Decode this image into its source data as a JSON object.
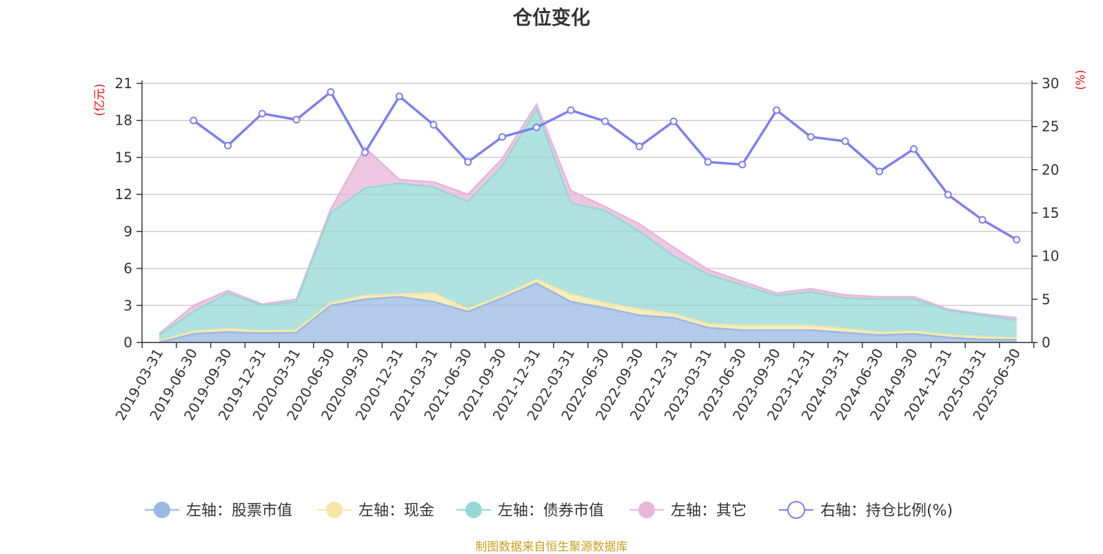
{
  "chart_data": {
    "type": "area",
    "title": "仓位变化",
    "left_axis": {
      "unit": "(亿元)",
      "range": [
        0,
        21
      ],
      "ticks": [
        0,
        3,
        6,
        9,
        12,
        15,
        18,
        21
      ]
    },
    "right_axis": {
      "unit": "(%)",
      "range": [
        0,
        30
      ],
      "ticks": [
        0,
        5,
        10,
        15,
        20,
        25,
        30
      ]
    },
    "categories": [
      "2019-03-31",
      "2019-06-30",
      "2019-09-30",
      "2019-12-31",
      "2020-03-31",
      "2020-06-30",
      "2020-09-30",
      "2020-12-31",
      "2021-03-31",
      "2021-06-30",
      "2021-09-30",
      "2021-12-31",
      "2022-03-31",
      "2022-06-30",
      "2022-09-30",
      "2022-12-31",
      "2023-03-31",
      "2023-06-30",
      "2023-09-30",
      "2023-12-31",
      "2024-03-31",
      "2024-06-30",
      "2024-09-30",
      "2024-12-31",
      "2025-03-31",
      "2025-06-30"
    ],
    "series": [
      {
        "name": "左轴：股票市值",
        "axis": "left",
        "type": "stacked-area",
        "color": "#9ab8e0",
        "values": [
          0.0,
          0.7,
          0.85,
          0.75,
          0.8,
          3.0,
          3.5,
          3.7,
          3.3,
          2.5,
          3.6,
          4.8,
          3.3,
          2.8,
          2.2,
          2.0,
          1.2,
          1.0,
          1.0,
          1.0,
          0.8,
          0.6,
          0.7,
          0.4,
          0.25,
          0.2
        ]
      },
      {
        "name": "左轴：现金",
        "axis": "left",
        "type": "stacked-area",
        "color": "#f6e7a6",
        "values": [
          0.1,
          0.2,
          0.25,
          0.15,
          0.2,
          0.2,
          0.3,
          0.2,
          0.7,
          0.2,
          0.2,
          0.3,
          0.6,
          0.4,
          0.5,
          0.3,
          0.3,
          0.35,
          0.35,
          0.35,
          0.3,
          0.2,
          0.2,
          0.2,
          0.2,
          0.15
        ]
      },
      {
        "name": "左轴：债券市值",
        "axis": "left",
        "type": "stacked-area",
        "color": "#96d8d6",
        "values": [
          0.5,
          1.6,
          2.9,
          2.1,
          2.3,
          7.3,
          8.7,
          9.0,
          8.6,
          8.7,
          10.5,
          13.8,
          7.4,
          7.5,
          6.3,
          4.7,
          4.0,
          3.3,
          2.45,
          2.75,
          2.5,
          2.7,
          2.6,
          2.0,
          1.75,
          1.45
        ]
      },
      {
        "name": "左轴：其它",
        "axis": "left",
        "type": "stacked-area",
        "color": "#e8b6da",
        "values": [
          0.1,
          0.5,
          0.2,
          0.1,
          0.2,
          0.3,
          3.3,
          0.3,
          0.4,
          0.6,
          0.6,
          0.4,
          1.0,
          0.3,
          0.6,
          0.7,
          0.4,
          0.3,
          0.2,
          0.25,
          0.25,
          0.2,
          0.2,
          0.1,
          0.1,
          0.2
        ]
      },
      {
        "name": "右轴：持仓比例(%)",
        "axis": "right",
        "type": "line",
        "color": "#7b7fef",
        "values": [
          null,
          25.7,
          22.8,
          26.5,
          25.8,
          29.0,
          22.0,
          28.5,
          25.2,
          20.9,
          23.8,
          24.9,
          26.9,
          25.6,
          22.7,
          25.6,
          20.9,
          20.6,
          26.9,
          23.8,
          23.3,
          19.8,
          22.4,
          17.1,
          14.2,
          11.9
        ]
      }
    ],
    "legend_position": "bottom",
    "grid": true
  },
  "source_text": "制图数据来自恒生聚源数据库"
}
